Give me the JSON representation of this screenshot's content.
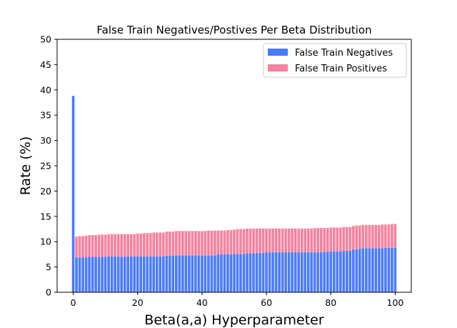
{
  "chart_data": {
    "type": "bar",
    "stacked": true,
    "title": "False Train Negatives/Postives Per Beta Distribution",
    "xlabel": "Beta(a,a) Hyperparameter",
    "ylabel": "Rate (%)",
    "xlim": [
      -5,
      105
    ],
    "ylim": [
      0,
      50
    ],
    "xticks": [
      0,
      20,
      40,
      60,
      80,
      100
    ],
    "yticks": [
      0,
      5,
      10,
      15,
      20,
      25,
      30,
      35,
      40,
      45,
      50
    ],
    "grid": false,
    "legend_position": "top-right",
    "x": [
      0,
      1,
      2,
      3,
      4,
      5,
      6,
      7,
      8,
      9,
      10,
      11,
      12,
      13,
      14,
      15,
      16,
      17,
      18,
      19,
      20,
      21,
      22,
      23,
      24,
      25,
      26,
      27,
      28,
      29,
      30,
      31,
      32,
      33,
      34,
      35,
      36,
      37,
      38,
      39,
      40,
      41,
      42,
      43,
      44,
      45,
      46,
      47,
      48,
      49,
      50,
      51,
      52,
      53,
      54,
      55,
      56,
      57,
      58,
      59,
      60,
      61,
      62,
      63,
      64,
      65,
      66,
      67,
      68,
      69,
      70,
      71,
      72,
      73,
      74,
      75,
      76,
      77,
      78,
      79,
      80,
      81,
      82,
      83,
      84,
      85,
      86,
      87,
      88,
      89,
      90,
      91,
      92,
      93,
      94,
      95,
      96,
      97,
      98,
      99,
      100
    ],
    "series": [
      {
        "name": "False Train Negatives",
        "color": "#4a7bff",
        "values": [
          38.8,
          6.9,
          6.9,
          6.9,
          6.9,
          7.0,
          7.0,
          7.0,
          7.0,
          7.0,
          7.0,
          7.1,
          7.1,
          7.1,
          7.1,
          7.0,
          7.0,
          7.1,
          7.1,
          7.1,
          7.1,
          7.1,
          7.1,
          7.1,
          7.1,
          7.1,
          7.1,
          7.1,
          7.1,
          7.2,
          7.2,
          7.2,
          7.3,
          7.3,
          7.3,
          7.3,
          7.3,
          7.3,
          7.3,
          7.3,
          7.3,
          7.3,
          7.3,
          7.3,
          7.3,
          7.5,
          7.5,
          7.5,
          7.5,
          7.5,
          7.6,
          7.6,
          7.6,
          7.6,
          7.7,
          7.7,
          7.7,
          7.8,
          7.8,
          7.8,
          7.9,
          7.9,
          7.9,
          7.9,
          7.9,
          7.9,
          7.9,
          7.9,
          7.9,
          7.9,
          7.9,
          7.9,
          7.9,
          7.9,
          7.9,
          7.9,
          7.9,
          7.9,
          8.0,
          8.0,
          8.1,
          8.1,
          8.1,
          8.1,
          8.2,
          8.2,
          8.2,
          8.5,
          8.5,
          8.6,
          8.7,
          8.7,
          8.7,
          8.7,
          8.7,
          8.7,
          8.7,
          8.8,
          8.8,
          8.8,
          8.8
        ]
      },
      {
        "name": "False Train Positives",
        "color": "#f7819e",
        "values": [
          0.0,
          4.1,
          4.2,
          4.2,
          4.3,
          4.3,
          4.3,
          4.3,
          4.4,
          4.4,
          4.4,
          4.4,
          4.4,
          4.4,
          4.4,
          4.5,
          4.5,
          4.4,
          4.4,
          4.4,
          4.5,
          4.5,
          4.6,
          4.6,
          4.6,
          4.7,
          4.7,
          4.7,
          4.7,
          4.8,
          4.8,
          4.8,
          4.8,
          4.8,
          4.8,
          4.8,
          4.8,
          4.8,
          4.8,
          4.8,
          4.8,
          4.8,
          4.9,
          4.9,
          4.9,
          4.7,
          4.7,
          4.7,
          4.8,
          4.8,
          4.8,
          4.9,
          4.9,
          4.9,
          4.9,
          4.9,
          4.9,
          4.8,
          4.8,
          4.8,
          4.7,
          4.7,
          4.7,
          4.7,
          4.7,
          4.7,
          4.7,
          4.7,
          4.7,
          4.7,
          4.7,
          4.7,
          4.7,
          4.7,
          4.7,
          4.8,
          4.8,
          4.8,
          4.7,
          4.7,
          4.7,
          4.7,
          4.7,
          4.7,
          4.7,
          4.7,
          4.7,
          4.6,
          4.7,
          4.6,
          4.6,
          4.6,
          4.6,
          4.6,
          4.6,
          4.6,
          4.7,
          4.6,
          4.6,
          4.7,
          4.7
        ]
      }
    ]
  }
}
